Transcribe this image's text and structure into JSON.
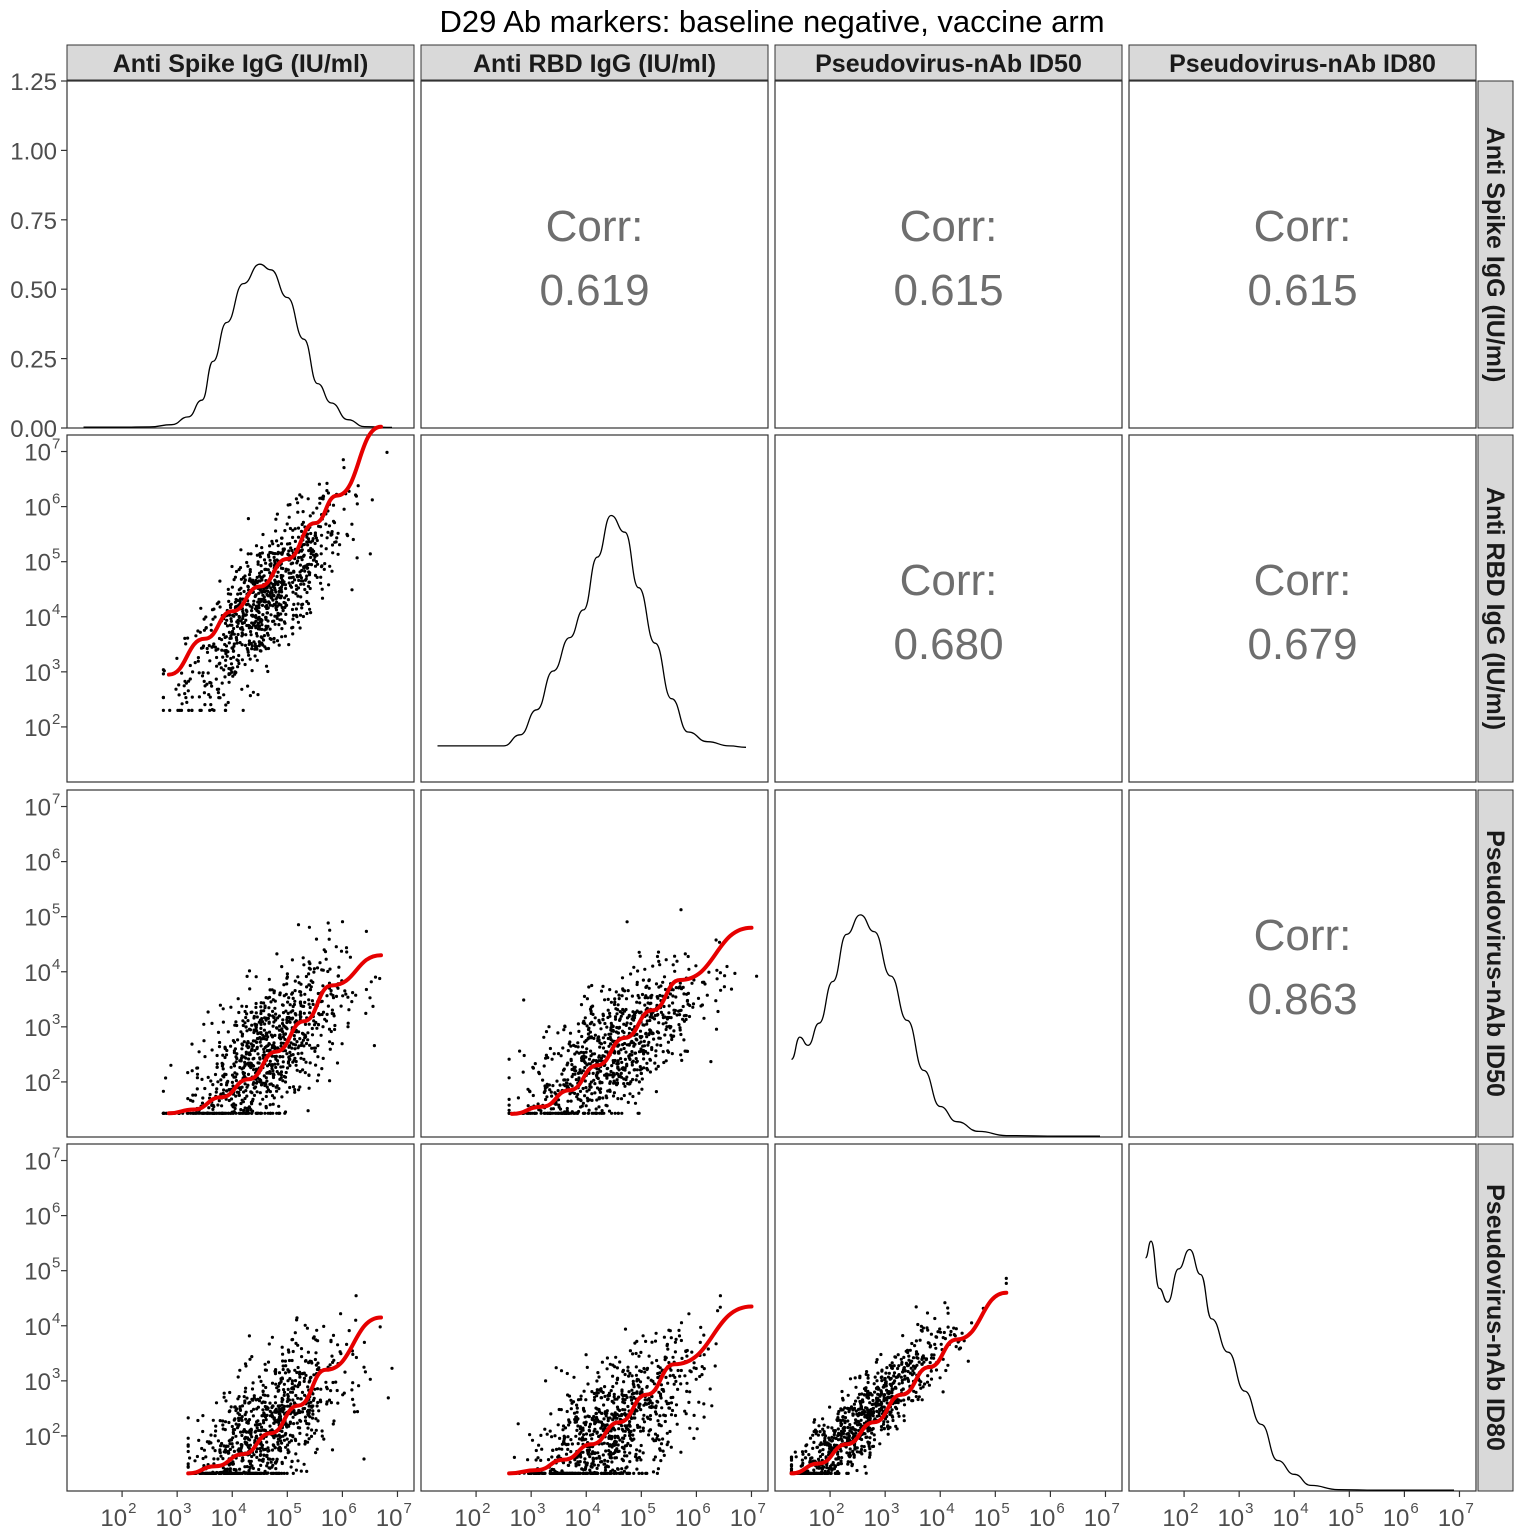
{
  "chart_data": {
    "type": "scatter-matrix",
    "title": "D29 Ab markers: baseline negative, vaccine arm",
    "variables": [
      "Anti Spike IgG (IU/ml)",
      "Anti RBD IgG (IU/ml)",
      "Pseudovirus-nAb ID50",
      "Pseudovirus-nAb ID80"
    ],
    "corr_label": "Corr:",
    "correlations": [
      {
        "row": 0,
        "col": 1,
        "value": "0.619"
      },
      {
        "row": 0,
        "col": 2,
        "value": "0.615"
      },
      {
        "row": 0,
        "col": 3,
        "value": "0.615"
      },
      {
        "row": 1,
        "col": 2,
        "value": "0.680"
      },
      {
        "row": 1,
        "col": 3,
        "value": "0.679"
      },
      {
        "row": 2,
        "col": 3,
        "value": "0.863"
      }
    ],
    "x_axis": {
      "scale": "log10",
      "range_log10": [
        1.0,
        7.3
      ],
      "ticks": [
        2,
        3,
        4,
        5,
        6,
        7
      ]
    },
    "y_axis_log": {
      "scale": "log10",
      "range_log10": [
        1.0,
        7.3
      ],
      "ticks": [
        2,
        3,
        4,
        5,
        6,
        7
      ]
    },
    "density_axis": {
      "range": [
        0,
        1.25
      ],
      "ticks": [
        "0.00",
        "0.25",
        "0.50",
        "0.75",
        "1.00",
        "1.25"
      ]
    },
    "tick_base": "10",
    "point_color": "#000000",
    "smooth_color": "#e60000",
    "densities": [
      {
        "var": 0,
        "points": [
          [
            1.3,
            0.003
          ],
          [
            2.0,
            0.003
          ],
          [
            2.5,
            0.004
          ],
          [
            2.9,
            0.012
          ],
          [
            3.2,
            0.04
          ],
          [
            3.45,
            0.1
          ],
          [
            3.65,
            0.24
          ],
          [
            3.9,
            0.38
          ],
          [
            4.2,
            0.52
          ],
          [
            4.5,
            0.59
          ],
          [
            4.7,
            0.57
          ],
          [
            5.0,
            0.47
          ],
          [
            5.3,
            0.32
          ],
          [
            5.55,
            0.16
          ],
          [
            5.8,
            0.09
          ],
          [
            6.1,
            0.03
          ],
          [
            6.4,
            0.005
          ],
          [
            6.9,
            0.002
          ]
        ]
      },
      {
        "var": 1,
        "points": [
          [
            1.3,
            0.13
          ],
          [
            2.0,
            0.13
          ],
          [
            2.5,
            0.13
          ],
          [
            2.8,
            0.17
          ],
          [
            3.1,
            0.26
          ],
          [
            3.4,
            0.4
          ],
          [
            3.7,
            0.52
          ],
          [
            3.95,
            0.62
          ],
          [
            4.2,
            0.81
          ],
          [
            4.45,
            0.96
          ],
          [
            4.7,
            0.9
          ],
          [
            4.95,
            0.7
          ],
          [
            5.25,
            0.5
          ],
          [
            5.55,
            0.3
          ],
          [
            5.85,
            0.18
          ],
          [
            6.2,
            0.145
          ],
          [
            6.6,
            0.13
          ],
          [
            6.9,
            0.125
          ]
        ]
      },
      {
        "var": 2,
        "points": [
          [
            1.3,
            0.28
          ],
          [
            1.45,
            0.36
          ],
          [
            1.6,
            0.33
          ],
          [
            1.8,
            0.41
          ],
          [
            2.05,
            0.56
          ],
          [
            2.3,
            0.73
          ],
          [
            2.55,
            0.8
          ],
          [
            2.8,
            0.74
          ],
          [
            3.1,
            0.58
          ],
          [
            3.4,
            0.42
          ],
          [
            3.7,
            0.24
          ],
          [
            4.0,
            0.11
          ],
          [
            4.3,
            0.055
          ],
          [
            4.7,
            0.02
          ],
          [
            5.2,
            0.005
          ],
          [
            6.2,
            0.003
          ],
          [
            6.9,
            0.003
          ]
        ]
      },
      {
        "var": 3,
        "points": [
          [
            1.3,
            0.84
          ],
          [
            1.4,
            0.9
          ],
          [
            1.55,
            0.73
          ],
          [
            1.7,
            0.68
          ],
          [
            1.9,
            0.8
          ],
          [
            2.1,
            0.87
          ],
          [
            2.3,
            0.78
          ],
          [
            2.5,
            0.62
          ],
          [
            2.8,
            0.5
          ],
          [
            3.1,
            0.36
          ],
          [
            3.4,
            0.24
          ],
          [
            3.7,
            0.11
          ],
          [
            4.0,
            0.06
          ],
          [
            4.3,
            0.02
          ],
          [
            4.8,
            0.005
          ],
          [
            5.5,
            0.003
          ],
          [
            6.9,
            0.003
          ]
        ]
      }
    ],
    "smooths": [
      {
        "row": 1,
        "col": 0,
        "points": [
          [
            2.85,
            2.95
          ],
          [
            3.5,
            3.6
          ],
          [
            4.0,
            4.1
          ],
          [
            4.5,
            4.55
          ],
          [
            5.0,
            5.05
          ],
          [
            5.5,
            5.7
          ],
          [
            5.9,
            6.2
          ],
          [
            6.7,
            7.45
          ]
        ]
      },
      {
        "row": 2,
        "col": 0,
        "points": [
          [
            2.85,
            1.43
          ],
          [
            3.3,
            1.5
          ],
          [
            3.8,
            1.72
          ],
          [
            4.3,
            2.05
          ],
          [
            4.8,
            2.55
          ],
          [
            5.3,
            3.1
          ],
          [
            5.8,
            3.75
          ],
          [
            6.7,
            4.3
          ]
        ]
      },
      {
        "row": 2,
        "col": 1,
        "points": [
          [
            2.65,
            1.42
          ],
          [
            3.2,
            1.55
          ],
          [
            3.7,
            1.85
          ],
          [
            4.2,
            2.3
          ],
          [
            4.7,
            2.8
          ],
          [
            5.2,
            3.3
          ],
          [
            5.7,
            3.85
          ],
          [
            7.0,
            4.8
          ]
        ]
      },
      {
        "row": 3,
        "col": 0,
        "points": [
          [
            3.2,
            1.32
          ],
          [
            3.7,
            1.45
          ],
          [
            4.2,
            1.67
          ],
          [
            4.7,
            2.05
          ],
          [
            5.2,
            2.55
          ],
          [
            5.7,
            3.2
          ],
          [
            6.7,
            4.15
          ]
        ]
      },
      {
        "row": 3,
        "col": 1,
        "points": [
          [
            2.6,
            1.32
          ],
          [
            3.1,
            1.38
          ],
          [
            3.6,
            1.57
          ],
          [
            4.1,
            1.85
          ],
          [
            4.6,
            2.25
          ],
          [
            5.1,
            2.75
          ],
          [
            5.6,
            3.3
          ],
          [
            7.0,
            4.35
          ]
        ]
      },
      {
        "row": 3,
        "col": 2,
        "points": [
          [
            1.3,
            1.32
          ],
          [
            1.8,
            1.5
          ],
          [
            2.3,
            1.85
          ],
          [
            2.8,
            2.25
          ],
          [
            3.3,
            2.75
          ],
          [
            3.8,
            3.25
          ],
          [
            4.3,
            3.75
          ],
          [
            5.2,
            4.6
          ]
        ]
      }
    ],
    "scatter_params": [
      {
        "row": 1,
        "col": 0,
        "n": 900,
        "xmean": 4.6,
        "xsd": 0.7,
        "xmin": 2.75,
        "xmax": 6.9,
        "slope": 1.02,
        "intercept": -0.4,
        "noise": 0.55,
        "floor": 2.3,
        "floor_val": 2.3
      },
      {
        "row": 2,
        "col": 0,
        "n": 900,
        "xmean": 4.6,
        "xsd": 0.7,
        "xmin": 2.75,
        "xmax": 6.9,
        "slope": 0.8,
        "intercept": -1.2,
        "noise": 0.65,
        "floor": 1.43,
        "floor_val": 1.43
      },
      {
        "row": 2,
        "col": 1,
        "n": 900,
        "xmean": 4.45,
        "xsd": 0.8,
        "xmin": 2.6,
        "xmax": 7.1,
        "slope": 0.75,
        "intercept": -0.8,
        "noise": 0.6,
        "floor": 1.43,
        "floor_val": 1.43
      },
      {
        "row": 3,
        "col": 0,
        "n": 900,
        "xmean": 4.6,
        "xsd": 0.7,
        "xmin": 3.2,
        "xmax": 6.9,
        "slope": 0.75,
        "intercept": -1.4,
        "noise": 0.6,
        "floor": 1.32,
        "floor_val": 1.32
      },
      {
        "row": 3,
        "col": 1,
        "n": 900,
        "xmean": 4.45,
        "xsd": 0.8,
        "xmin": 2.6,
        "xmax": 7.1,
        "slope": 0.7,
        "intercept": -1.0,
        "noise": 0.6,
        "floor": 1.32,
        "floor_val": 1.32
      },
      {
        "row": 3,
        "col": 2,
        "n": 900,
        "xmean": 2.6,
        "xsd": 0.8,
        "xmin": 1.3,
        "xmax": 5.2,
        "slope": 0.95,
        "intercept": -0.2,
        "noise": 0.35,
        "floor": 1.32,
        "floor_val": 1.32
      }
    ]
  }
}
